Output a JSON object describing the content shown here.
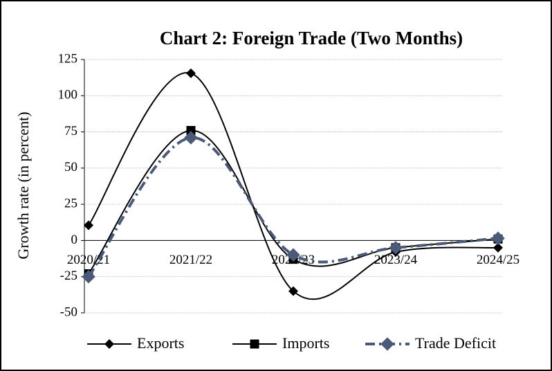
{
  "chart_data": {
    "type": "line",
    "title": "Chart 2: Foreign Trade (Two Months)",
    "y_label": "Growth rate (in percent)",
    "categories": [
      "2020/21",
      "2021/22",
      "2022/23",
      "2023/24",
      "2024/25"
    ],
    "series": [
      {
        "name": "Exports",
        "color": "#000000",
        "marker": "diamond",
        "dash": "solid",
        "values": [
          10.5,
          115.5,
          -35,
          -8,
          -5
        ]
      },
      {
        "name": "Imports",
        "color": "#000000",
        "marker": "square",
        "dash": "solid",
        "values": [
          -23,
          76,
          -13,
          -5,
          1
        ]
      },
      {
        "name": "Trade Deficit",
        "color": "#4a5a78",
        "marker": "diamond",
        "dash": "dashdot",
        "values": [
          -25,
          71,
          -10,
          -5,
          1.5
        ]
      }
    ],
    "ylim": [
      -50,
      125
    ],
    "yticks": [
      -50,
      -25,
      0,
      25,
      50,
      75,
      100,
      125
    ],
    "grid": true,
    "smooth": true,
    "legend": "bottom"
  }
}
